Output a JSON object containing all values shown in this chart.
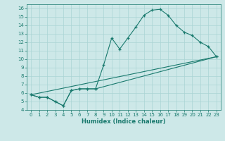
{
  "xlabel": "Humidex (Indice chaleur)",
  "xlim": [
    -0.5,
    23.5
  ],
  "ylim": [
    4,
    16.5
  ],
  "xticks": [
    0,
    1,
    2,
    3,
    4,
    5,
    6,
    7,
    8,
    9,
    10,
    11,
    12,
    13,
    14,
    15,
    16,
    17,
    18,
    19,
    20,
    21,
    22,
    23
  ],
  "yticks": [
    4,
    5,
    6,
    7,
    8,
    9,
    10,
    11,
    12,
    13,
    14,
    15,
    16
  ],
  "bg_color": "#cde8e8",
  "grid_color": "#aad4d4",
  "line_color": "#1a7a6e",
  "line1_x": [
    0,
    1,
    2,
    3,
    4,
    5,
    6,
    7,
    8,
    9,
    10,
    11,
    12,
    13,
    14,
    15,
    16,
    17,
    18,
    19,
    20,
    21,
    22,
    23
  ],
  "line1_y": [
    5.8,
    5.5,
    5.5,
    5.0,
    4.5,
    6.3,
    6.5,
    6.5,
    6.5,
    9.3,
    12.5,
    11.2,
    12.5,
    13.8,
    15.2,
    15.8,
    15.9,
    15.2,
    14.0,
    13.2,
    12.8,
    12.0,
    11.5,
    10.3
  ],
  "line2_x": [
    0,
    1,
    2,
    3,
    4,
    5,
    6,
    7,
    8,
    23
  ],
  "line2_y": [
    5.8,
    5.5,
    5.5,
    5.0,
    4.5,
    6.3,
    6.5,
    6.5,
    6.5,
    10.3
  ],
  "line3_x": [
    0,
    23
  ],
  "line3_y": [
    5.8,
    10.3
  ]
}
